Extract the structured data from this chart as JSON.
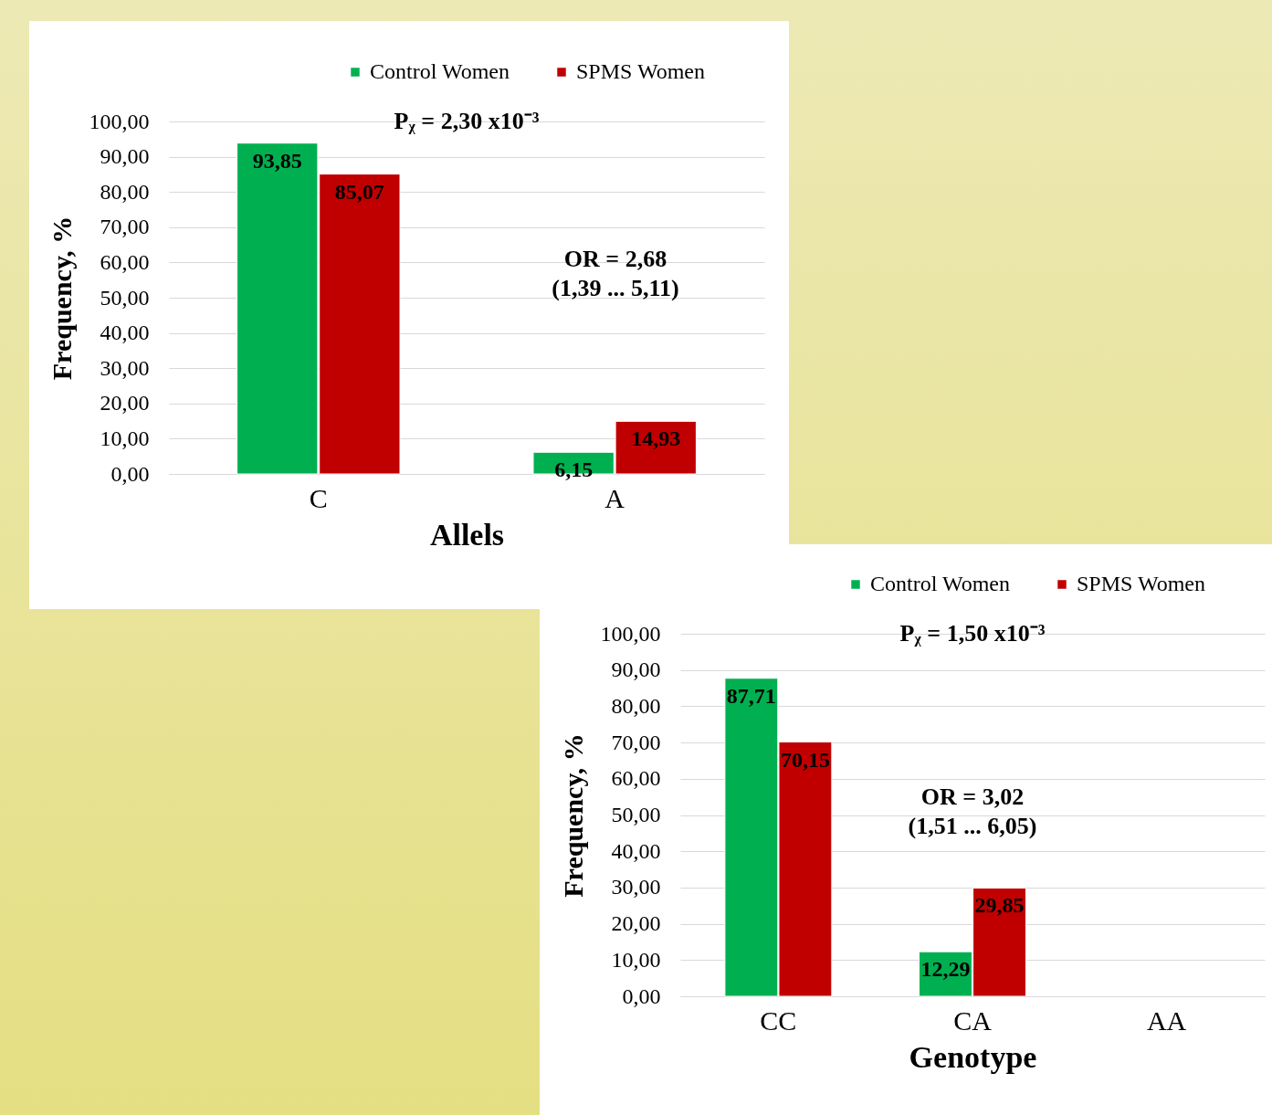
{
  "chart_data": [
    {
      "type": "bar",
      "xlabel": "Allels",
      "ylabel": "Frequency, %",
      "categories": [
        "C",
        "A"
      ],
      "series": [
        {
          "name": "Control Women",
          "color": "#00b050",
          "values": [
            93.85,
            6.15
          ],
          "value_labels": [
            "93,85",
            "6,15"
          ]
        },
        {
          "name": "SPMS Women",
          "color": "#c00000",
          "values": [
            85.07,
            14.93
          ],
          "value_labels": [
            "85,07",
            "14,93"
          ]
        }
      ],
      "ylim": [
        0,
        100
      ],
      "yticks": [
        {
          "value": 0,
          "label": "0,00"
        },
        {
          "value": 10,
          "label": "10,00"
        },
        {
          "value": 20,
          "label": "20,00"
        },
        {
          "value": 30,
          "label": "30,00"
        },
        {
          "value": 40,
          "label": "40,00"
        },
        {
          "value": 50,
          "label": "50,00"
        },
        {
          "value": 60,
          "label": "60,00"
        },
        {
          "value": 70,
          "label": "70,00"
        },
        {
          "value": 80,
          "label": "80,00"
        },
        {
          "value": 90,
          "label": "90,00"
        },
        {
          "value": 100,
          "label": "100,00"
        }
      ],
      "grid": "y",
      "legend": "top right",
      "annotations": [
        "Pᵪ = 2,30 x10⁻³",
        "OR = 2,68\n(1,39 ... 5,11)"
      ]
    },
    {
      "type": "bar",
      "xlabel": "Genotype",
      "ylabel": "Frequency, %",
      "categories": [
        "CC",
        "CA",
        "AA"
      ],
      "series": [
        {
          "name": "Control Women",
          "color": "#00b050",
          "values": [
            87.71,
            12.29,
            null
          ],
          "value_labels": [
            "87,71",
            "12,29",
            null
          ]
        },
        {
          "name": "SPMS Women",
          "color": "#c00000",
          "values": [
            70.15,
            29.85,
            null
          ],
          "value_labels": [
            "70,15",
            "29,85",
            null
          ]
        }
      ],
      "ylim": [
        0,
        100
      ],
      "yticks": [
        {
          "value": 0,
          "label": "0,00"
        },
        {
          "value": 10,
          "label": "10,00"
        },
        {
          "value": 20,
          "label": "20,00"
        },
        {
          "value": 30,
          "label": "30,00"
        },
        {
          "value": 40,
          "label": "40,00"
        },
        {
          "value": 50,
          "label": "50,00"
        },
        {
          "value": 60,
          "label": "60,00"
        },
        {
          "value": 70,
          "label": "70,00"
        },
        {
          "value": 80,
          "label": "80,00"
        },
        {
          "value": 90,
          "label": "90,00"
        },
        {
          "value": 100,
          "label": "100,00"
        }
      ],
      "grid": "y",
      "legend": "top right",
      "annotations": [
        "Pᵪ = 1,50 x10⁻³",
        "OR = 3,02\n(1,51 ... 6,05)"
      ]
    }
  ]
}
